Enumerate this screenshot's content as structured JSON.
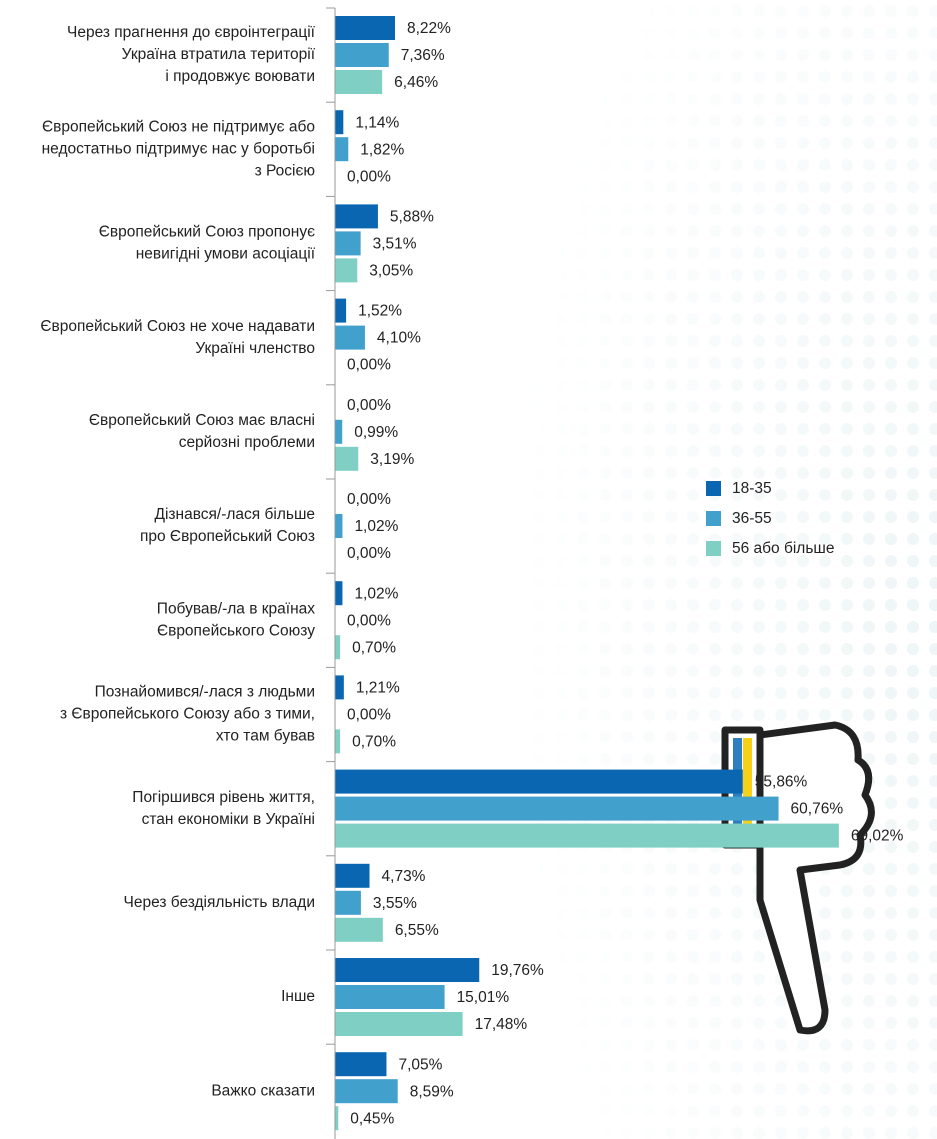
{
  "chart_data": {
    "type": "hbar",
    "categories": [
      [
        "Через прагнення до євроінтеграції",
        "Україна втратила території",
        "і продовжує воювати"
      ],
      [
        "Європейський Союз не підтримує або",
        "недостатньо підтримує нас у боротьбі",
        "з Росією"
      ],
      [
        "Європейський Союз пропонує",
        "невигідні умови асоціації"
      ],
      [
        "Європейський Союз не хоче надавати",
        "Україні членство"
      ],
      [
        "Європейський Союз має власні",
        "серйозні проблеми"
      ],
      [
        "Дізнався/-лася більше",
        "про Європейський Союз"
      ],
      [
        "Побував/-ла в країнах",
        "Європейського Союзу"
      ],
      [
        "Познайомився/-лася з людьми",
        "з Європейського Союзу або з тими,",
        "хто там бував"
      ],
      [
        "Погіршився рівень життя,",
        "стан економіки в Україні"
      ],
      [
        "Через бездіяльність влади"
      ],
      [
        "Інше"
      ],
      [
        "Важко сказати"
      ]
    ],
    "series": [
      {
        "name": "18-35",
        "color": "#0a66b0",
        "values": [
          8.22,
          1.14,
          5.88,
          1.52,
          0,
          0,
          1.02,
          1.21,
          55.86,
          4.73,
          19.76,
          7.05
        ],
        "value_labels": [
          "8,22%",
          "1,14%",
          "5,88%",
          "1,52%",
          "0,00%",
          "0,00%",
          "1,02%",
          "1,21%",
          "55,86%",
          "4,73%",
          "19,76%",
          "7,05%"
        ]
      },
      {
        "name": "36-55",
        "color": "#41a0cc",
        "values": [
          7.36,
          1.82,
          3.51,
          4.1,
          0.99,
          1.02,
          0,
          0,
          60.76,
          3.55,
          15.01,
          8.59
        ],
        "value_labels": [
          "7,36%",
          "1,82%",
          "3,51%",
          "4,10%",
          "0,99%",
          "1,02%",
          "0,00%",
          "0,00%",
          "60,76%",
          "3,55%",
          "15,01%",
          "8,59%"
        ]
      },
      {
        "name": "56 або більше",
        "color": "#7fcfc5",
        "values": [
          6.46,
          0,
          3.05,
          0,
          3.19,
          0,
          0.7,
          0.7,
          69.02,
          6.55,
          17.48,
          0.45
        ],
        "value_labels": [
          "6,46%",
          "0,00%",
          "3,05%",
          "0,00%",
          "3,19%",
          "0,00%",
          "0,70%",
          "0,70%",
          "69,02%",
          "6,55%",
          "17,48%",
          "0,45%"
        ]
      }
    ],
    "xlim": [
      0,
      70
    ],
    "legend": "right"
  }
}
